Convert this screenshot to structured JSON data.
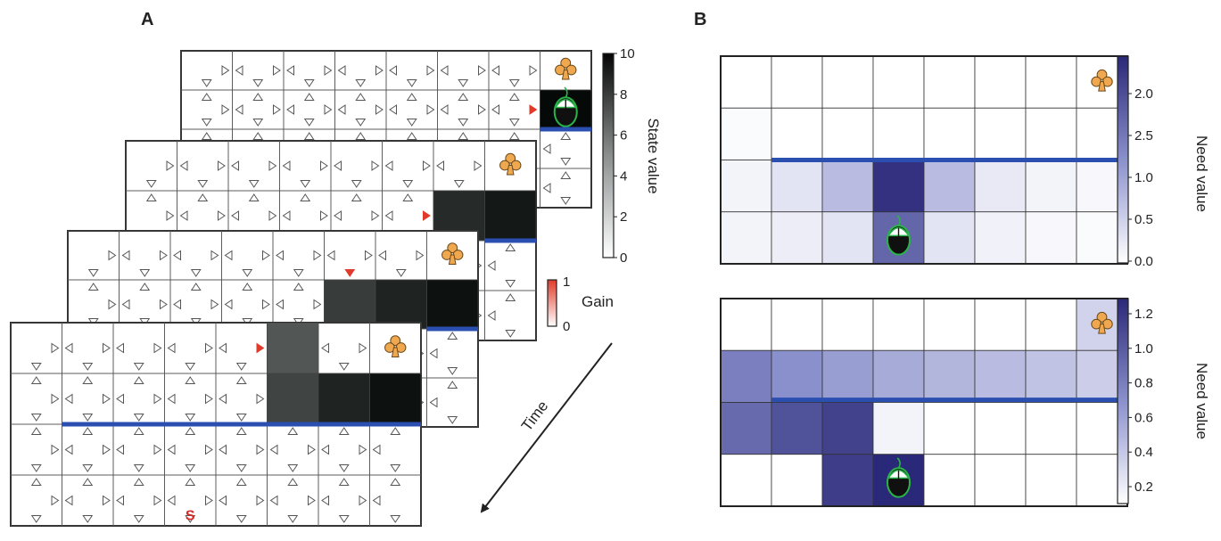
{
  "panels": {
    "a": "A",
    "b": "B"
  },
  "time_label": "Time",
  "start_label": "S",
  "state_colorbar": {
    "label": "State value",
    "ticks": [
      "10",
      "8",
      "6",
      "4",
      "2",
      "0"
    ]
  },
  "gain_colorbar": {
    "label": "Gain",
    "max": "1",
    "min": "0"
  },
  "need_top": {
    "label": "Need value",
    "ticks": [
      "2.0",
      "2.5",
      "1.0",
      "0.5",
      "0.0"
    ]
  },
  "need_bottom": {
    "label": "Need value",
    "ticks": [
      "1.2",
      "1.0",
      "0.8",
      "0.6",
      "0.4",
      "0.2"
    ]
  },
  "icons": {
    "reward": "club-reward-icon",
    "agent": "mouse-agent-icon"
  },
  "colors": {
    "wall": "#2a4fb0",
    "gain": "#e03a2a",
    "reward": "#f0a850",
    "mouse_outline": "#2bb34a",
    "need_dark": "#2a2878"
  },
  "need_top_grid": [
    [
      0.0,
      0.0,
      0.0,
      0.0,
      0.0,
      0.0,
      0.0,
      0.0
    ],
    [
      0.02,
      0.0,
      0.0,
      0.0,
      0.0,
      0.0,
      0.0,
      0.0
    ],
    [
      0.05,
      0.12,
      0.3,
      0.95,
      0.3,
      0.1,
      0.05,
      0.03
    ],
    [
      0.05,
      0.08,
      0.12,
      0.7,
      0.12,
      0.06,
      0.03,
      0.02
    ]
  ],
  "need_bottom_grid": [
    [
      0.0,
      0.0,
      0.0,
      0.0,
      0.0,
      0.0,
      0.0,
      0.2
    ],
    [
      0.58,
      0.5,
      0.44,
      0.38,
      0.33,
      0.3,
      0.27,
      0.22
    ],
    [
      0.68,
      0.8,
      0.88,
      0.05,
      0.0,
      0.0,
      0.0,
      0.0
    ],
    [
      0.0,
      0.0,
      0.9,
      1.0,
      0.0,
      0.0,
      0.0,
      0.0
    ]
  ]
}
